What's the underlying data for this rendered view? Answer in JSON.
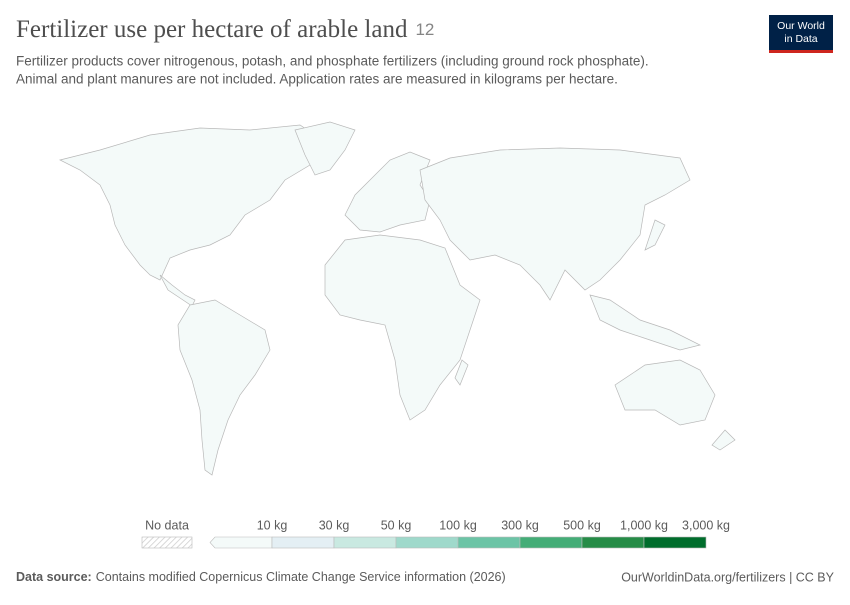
{
  "header": {
    "title": "Fertilizer use per hectare of arable land",
    "badge": "12",
    "subtitle_lines": [
      "Fertilizer products cover nitrogenous, potash, and phosphate fertilizers (including ground rock phosphate).",
      "Animal and plant manures are not included. Application rates are measured in kilograms per hectare."
    ]
  },
  "logo": {
    "lines": [
      "Our World",
      "in Data"
    ]
  },
  "legend": {
    "no_data": "No data",
    "base_color": "#f4faf9",
    "bins": [
      {
        "label": "10 kg",
        "color": "#e4eff4"
      },
      {
        "label": "30 kg",
        "color": "#c9e9e1"
      },
      {
        "label": "50 kg",
        "color": "#9fd9cb"
      },
      {
        "label": "100 kg",
        "color": "#6cc4a6"
      },
      {
        "label": "300 kg",
        "color": "#44ad77"
      },
      {
        "label": "500 kg",
        "color": "#268c47"
      },
      {
        "label": "1,000 kg",
        "color": "#006d2c"
      },
      {
        "label": "3,000 kg",
        "color": null
      }
    ]
  },
  "footer": {
    "source_label": "Data source:",
    "source": "Contains modified Copernicus Climate Change Service information (2026)",
    "credit": "OurWorldinData.org/fertilizers | CC BY"
  }
}
